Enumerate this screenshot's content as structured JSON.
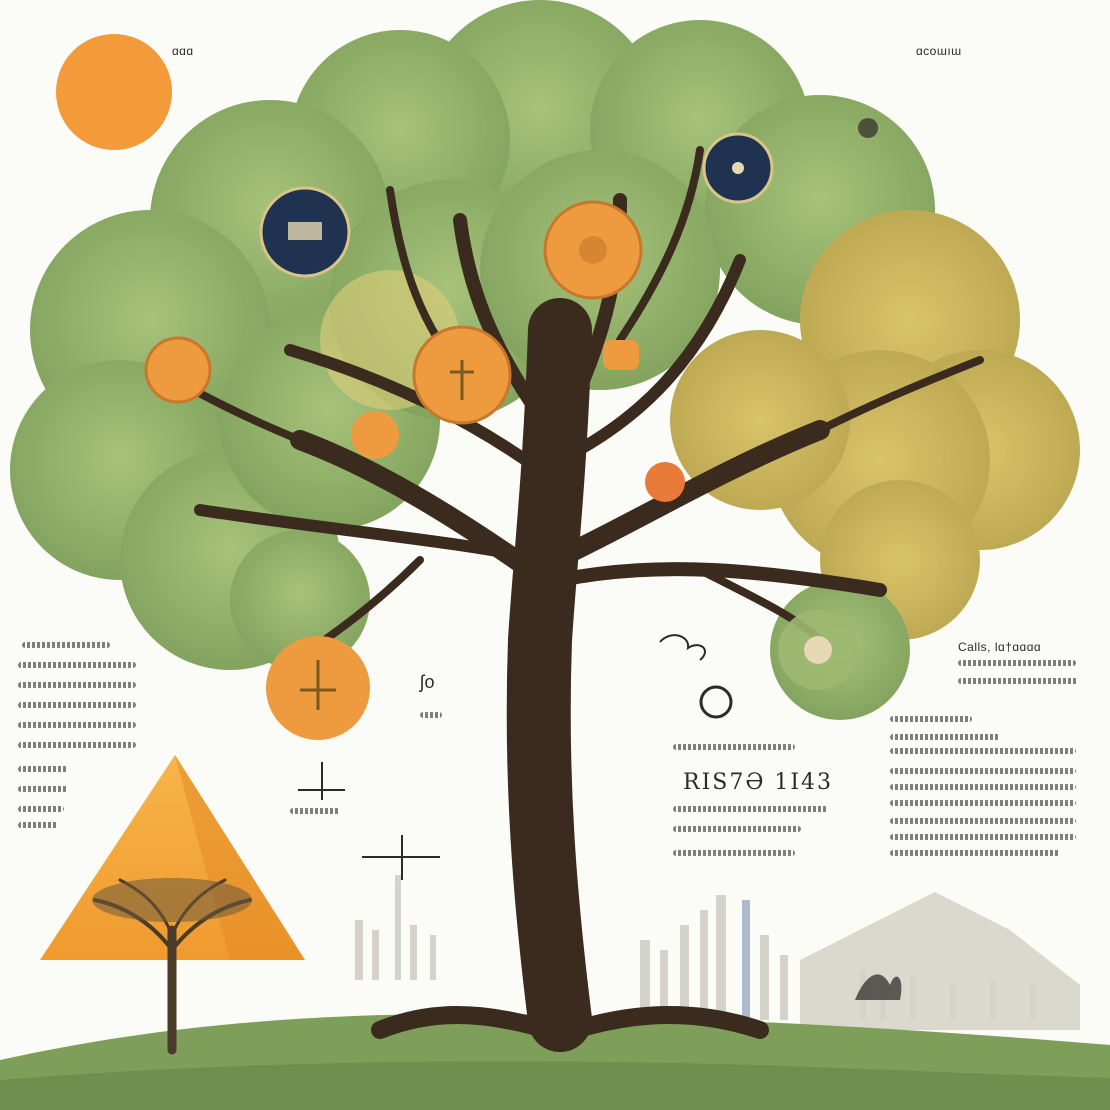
{
  "header": {
    "top_left_label": "ɑɑɑ",
    "top_right_label": "ɑcoɯıɯ"
  },
  "annotations": {
    "center_large": "RIS7Ə 1I43",
    "mid_glyph": "ʃo",
    "right_top_heading": "Calls, lɑ†ɑɑɑɑ"
  },
  "colors": {
    "sun": "#f39a3a",
    "foliage_green": "#8fb06a",
    "foliage_yellow": "#c8b25a",
    "trunk": "#3b2a1e",
    "medallion_navy": "#1f3350",
    "medallion_orange": "#ee9a3e",
    "ground": "#7e9f5a",
    "mountain_orange": "#f4a93c"
  },
  "icons": [
    "sun-icon",
    "medallion-icon",
    "tree-icon",
    "mountain-icon",
    "city-skyline-icon"
  ]
}
